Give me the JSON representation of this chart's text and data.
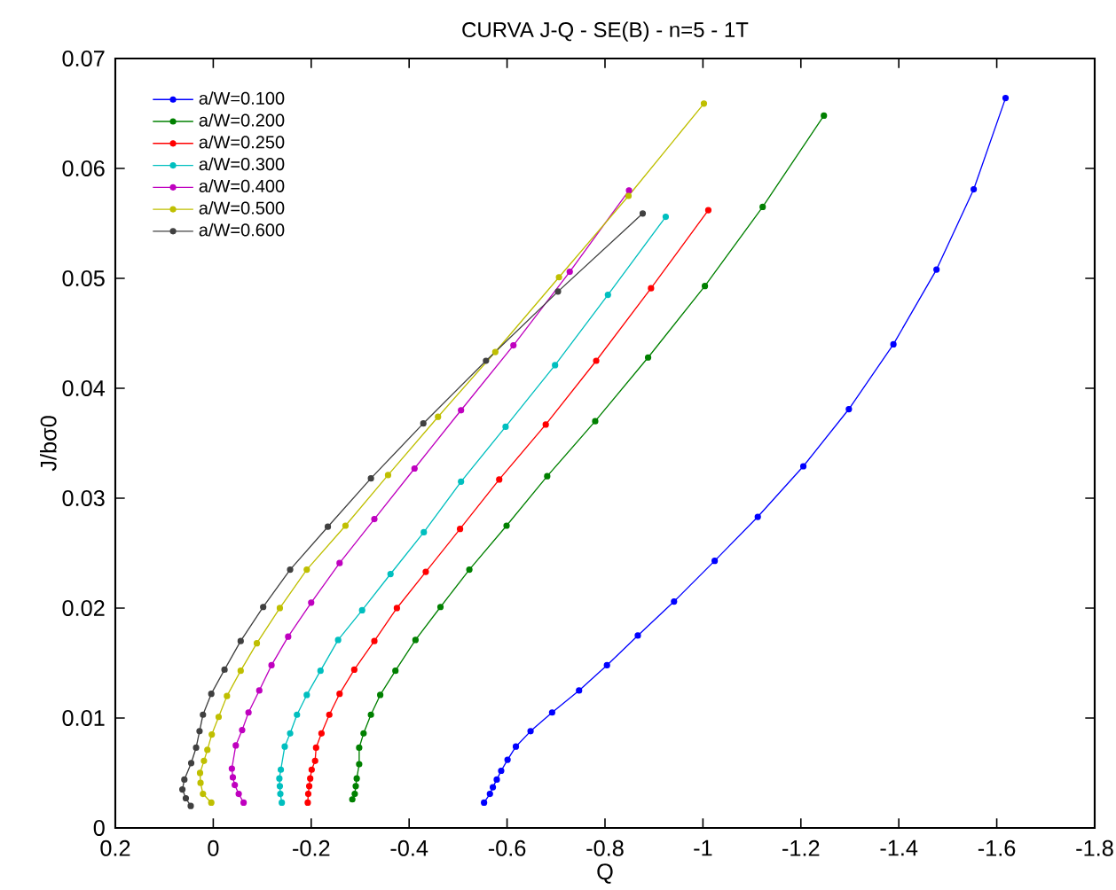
{
  "chart_data": {
    "type": "line",
    "title": "CURVA J-Q - SE(B) - n=5 - 1T",
    "xlabel": "Q",
    "ylabel": "J/bσ0",
    "xlim": [
      0.2,
      -1.8
    ],
    "xticks": [
      0.2,
      0,
      -0.2,
      -0.4,
      -0.6,
      -0.8,
      -1,
      -1.2,
      -1.4,
      -1.6,
      -1.8
    ],
    "ylim": [
      0,
      0.07
    ],
    "yticks": [
      0,
      0.01,
      0.02,
      0.03,
      0.04,
      0.05,
      0.06,
      0.07
    ],
    "legend": "top left",
    "marker": "circle",
    "line_style": "solid",
    "grid": false,
    "series": [
      {
        "name": "a/W=0.100",
        "color": "#0000ff",
        "x": [
          -0.553,
          -0.565,
          -0.571,
          -0.579,
          -0.588,
          -0.601,
          -0.618,
          -0.648,
          -0.692,
          -0.747,
          -0.804,
          -0.867,
          -0.941,
          -1.024,
          -1.112,
          -1.205,
          -1.298,
          -1.389,
          -1.477,
          -1.553,
          -1.618
        ],
        "values": [
          0.0023,
          0.0031,
          0.0037,
          0.0044,
          0.0052,
          0.0062,
          0.0074,
          0.0088,
          0.0105,
          0.0125,
          0.0148,
          0.0175,
          0.0206,
          0.0243,
          0.0283,
          0.0329,
          0.0381,
          0.044,
          0.0508,
          0.0581,
          0.0664
        ]
      },
      {
        "name": "a/W=0.200",
        "color": "#008000",
        "x": [
          -0.284,
          -0.289,
          -0.291,
          -0.293,
          -0.298,
          -0.298,
          -0.307,
          -0.322,
          -0.341,
          -0.372,
          -0.413,
          -0.464,
          -0.523,
          -0.599,
          -0.682,
          -0.78,
          -0.888,
          -1.004,
          -1.122,
          -1.247
        ],
        "values": [
          0.0026,
          0.0031,
          0.0038,
          0.0045,
          0.0058,
          0.0073,
          0.0086,
          0.0103,
          0.0121,
          0.0143,
          0.0171,
          0.0201,
          0.0235,
          0.0275,
          0.032,
          0.037,
          0.0428,
          0.0493,
          0.0565,
          0.0648
        ]
      },
      {
        "name": "a/W=0.250",
        "color": "#ff0000",
        "x": [
          -0.193,
          -0.194,
          -0.196,
          -0.198,
          -0.201,
          -0.208,
          -0.21,
          -0.221,
          -0.237,
          -0.258,
          -0.288,
          -0.329,
          -0.375,
          -0.434,
          -0.504,
          -0.584,
          -0.679,
          -0.782,
          -0.894,
          -1.011
        ],
        "values": [
          0.0023,
          0.0031,
          0.0038,
          0.0045,
          0.0053,
          0.0061,
          0.0073,
          0.0086,
          0.0103,
          0.0122,
          0.0144,
          0.017,
          0.02,
          0.0233,
          0.0272,
          0.0317,
          0.0367,
          0.0425,
          0.0491,
          0.0562
        ]
      },
      {
        "name": "a/W=0.300",
        "color": "#00bfbf",
        "x": [
          -0.14,
          -0.137,
          -0.136,
          -0.135,
          -0.138,
          -0.146,
          -0.157,
          -0.171,
          -0.191,
          -0.219,
          -0.255,
          -0.304,
          -0.362,
          -0.43,
          -0.506,
          -0.597,
          -0.698,
          -0.806,
          -0.924
        ],
        "values": [
          0.0023,
          0.0031,
          0.0038,
          0.0045,
          0.0053,
          0.0074,
          0.0086,
          0.0103,
          0.0121,
          0.0143,
          0.0171,
          0.0198,
          0.0231,
          0.0269,
          0.0315,
          0.0365,
          0.0421,
          0.0485,
          0.0556
        ]
      },
      {
        "name": "a/W=0.400",
        "color": "#bf00bf",
        "x": [
          -0.062,
          -0.052,
          -0.044,
          -0.04,
          -0.038,
          -0.046,
          -0.059,
          -0.072,
          -0.094,
          -0.119,
          -0.153,
          -0.2,
          -0.258,
          -0.329,
          -0.411,
          -0.506,
          -0.613,
          -0.728,
          -0.849
        ],
        "values": [
          0.0023,
          0.0031,
          0.0039,
          0.0046,
          0.0054,
          0.0075,
          0.0089,
          0.0105,
          0.0125,
          0.0148,
          0.0174,
          0.0205,
          0.0241,
          0.0281,
          0.0327,
          0.038,
          0.0439,
          0.0506,
          0.058
        ]
      },
      {
        "name": "a/W=0.500",
        "color": "#bfbf00",
        "x": [
          0.004,
          0.021,
          0.026,
          0.027,
          0.019,
          0.012,
          0.003,
          -0.011,
          -0.028,
          -0.056,
          -0.089,
          -0.136,
          -0.191,
          -0.27,
          -0.357,
          -0.459,
          -0.576,
          -0.706,
          -0.848,
          -1.002
        ],
        "values": [
          0.0023,
          0.0031,
          0.0041,
          0.005,
          0.0061,
          0.0071,
          0.0085,
          0.0101,
          0.012,
          0.0143,
          0.0168,
          0.02,
          0.0235,
          0.0275,
          0.0321,
          0.0374,
          0.0433,
          0.0501,
          0.0575,
          0.0659
        ]
      },
      {
        "name": "a/W=0.600",
        "color": "#404040",
        "x": [
          0.046,
          0.056,
          0.063,
          0.059,
          0.045,
          0.035,
          0.028,
          0.021,
          0.004,
          -0.023,
          -0.056,
          -0.102,
          -0.157,
          -0.234,
          -0.322,
          -0.429,
          -0.557,
          -0.704,
          -0.877
        ],
        "values": [
          0.002,
          0.0027,
          0.0035,
          0.0044,
          0.0059,
          0.0073,
          0.0088,
          0.0103,
          0.0122,
          0.0144,
          0.017,
          0.0201,
          0.0235,
          0.0274,
          0.0318,
          0.0368,
          0.0425,
          0.0488,
          0.0559
        ]
      }
    ]
  }
}
